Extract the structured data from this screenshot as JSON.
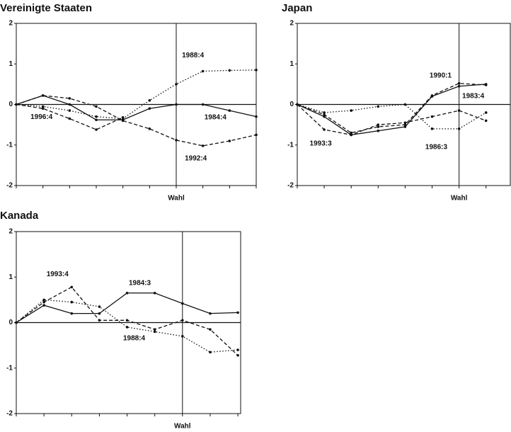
{
  "chart_data": [
    {
      "type": "line",
      "title": "Vereinigte Staaten",
      "x": [
        0,
        1,
        2,
        3,
        4,
        5,
        6,
        7,
        8,
        9
      ],
      "xlim": [
        0,
        9
      ],
      "ylim": [
        -2,
        2
      ],
      "yticks": [
        -2,
        -1,
        0,
        1,
        2
      ],
      "event": {
        "x": 6,
        "label": "Wahl"
      },
      "series": [
        {
          "name": "1984:4",
          "color": "#111111",
          "line_style": "solid",
          "values": [
            0,
            0.22,
            0.0,
            -0.38,
            -0.38,
            -0.1,
            0.0,
            0.0,
            -0.15,
            -0.3
          ]
        },
        {
          "name": "1988:4",
          "color": "#111111",
          "line_style": "dotted",
          "values": [
            0,
            -0.05,
            -0.15,
            -0.3,
            -0.35,
            0.1,
            0.5,
            0.82,
            0.84,
            0.85
          ]
        },
        {
          "name": "1992:4",
          "color": "#111111",
          "line_style": "dashed",
          "values": [
            0,
            0.22,
            0.15,
            -0.05,
            -0.4,
            -0.6,
            -0.88,
            -1.02,
            -0.9,
            -0.75
          ]
        },
        {
          "name": "1996:4",
          "color": "#111111",
          "line_style": "dashed",
          "values": [
            0,
            -0.1,
            -0.35,
            -0.62,
            -0.32,
            null,
            null,
            null,
            null,
            null
          ]
        }
      ]
    },
    {
      "type": "line",
      "title": "Japan",
      "x": [
        0,
        1,
        2,
        3,
        4,
        5,
        6,
        7
      ],
      "xlim": [
        0,
        7.9
      ],
      "ylim": [
        -2,
        2
      ],
      "yticks": [
        -2,
        -1,
        0,
        1,
        2
      ],
      "event": {
        "x": 6,
        "label": "Wahl"
      },
      "series": [
        {
          "name": "1983:4",
          "color": "#111111",
          "line_style": "solid",
          "values": [
            0,
            -0.3,
            -0.75,
            -0.65,
            -0.55,
            0.2,
            0.45,
            0.5
          ]
        },
        {
          "name": "1986:3",
          "color": "#111111",
          "line_style": "dotted",
          "values": [
            0,
            -0.2,
            -0.15,
            -0.05,
            0.0,
            -0.6,
            -0.6,
            -0.2
          ]
        },
        {
          "name": "1990:1",
          "color": "#111111",
          "line_style": "dashed",
          "values": [
            0,
            -0.25,
            -0.7,
            -0.55,
            -0.5,
            0.22,
            0.52,
            0.48
          ]
        },
        {
          "name": "1993:3",
          "color": "#111111",
          "line_style": "dashed",
          "values": [
            0,
            -0.62,
            -0.75,
            -0.5,
            -0.45,
            -0.3,
            -0.15,
            -0.4
          ]
        }
      ]
    },
    {
      "type": "line",
      "title": "Kanada",
      "x": [
        0,
        1,
        2,
        3,
        4,
        5,
        6,
        7,
        8
      ],
      "xlim": [
        0,
        8.1
      ],
      "ylim": [
        -2,
        2
      ],
      "yticks": [
        -2,
        -1,
        0,
        1,
        2
      ],
      "event": {
        "x": 6,
        "label": "Wahl"
      },
      "series": [
        {
          "name": "1984:3",
          "color": "#111111",
          "line_style": "solid",
          "values": [
            0,
            0.38,
            0.2,
            0.2,
            0.65,
            0.65,
            0.42,
            0.2,
            0.22
          ]
        },
        {
          "name": "1993:4",
          "color": "#111111",
          "line_style": "dashed",
          "values": [
            0,
            0.45,
            0.78,
            0.05,
            0.05,
            -0.15,
            0.05,
            -0.15,
            -0.72
          ]
        },
        {
          "name": "1988:4",
          "color": "#111111",
          "line_style": "dotted",
          "values": [
            0,
            0.5,
            0.45,
            0.35,
            -0.1,
            -0.2,
            -0.3,
            -0.65,
            -0.6
          ]
        }
      ]
    }
  ]
}
